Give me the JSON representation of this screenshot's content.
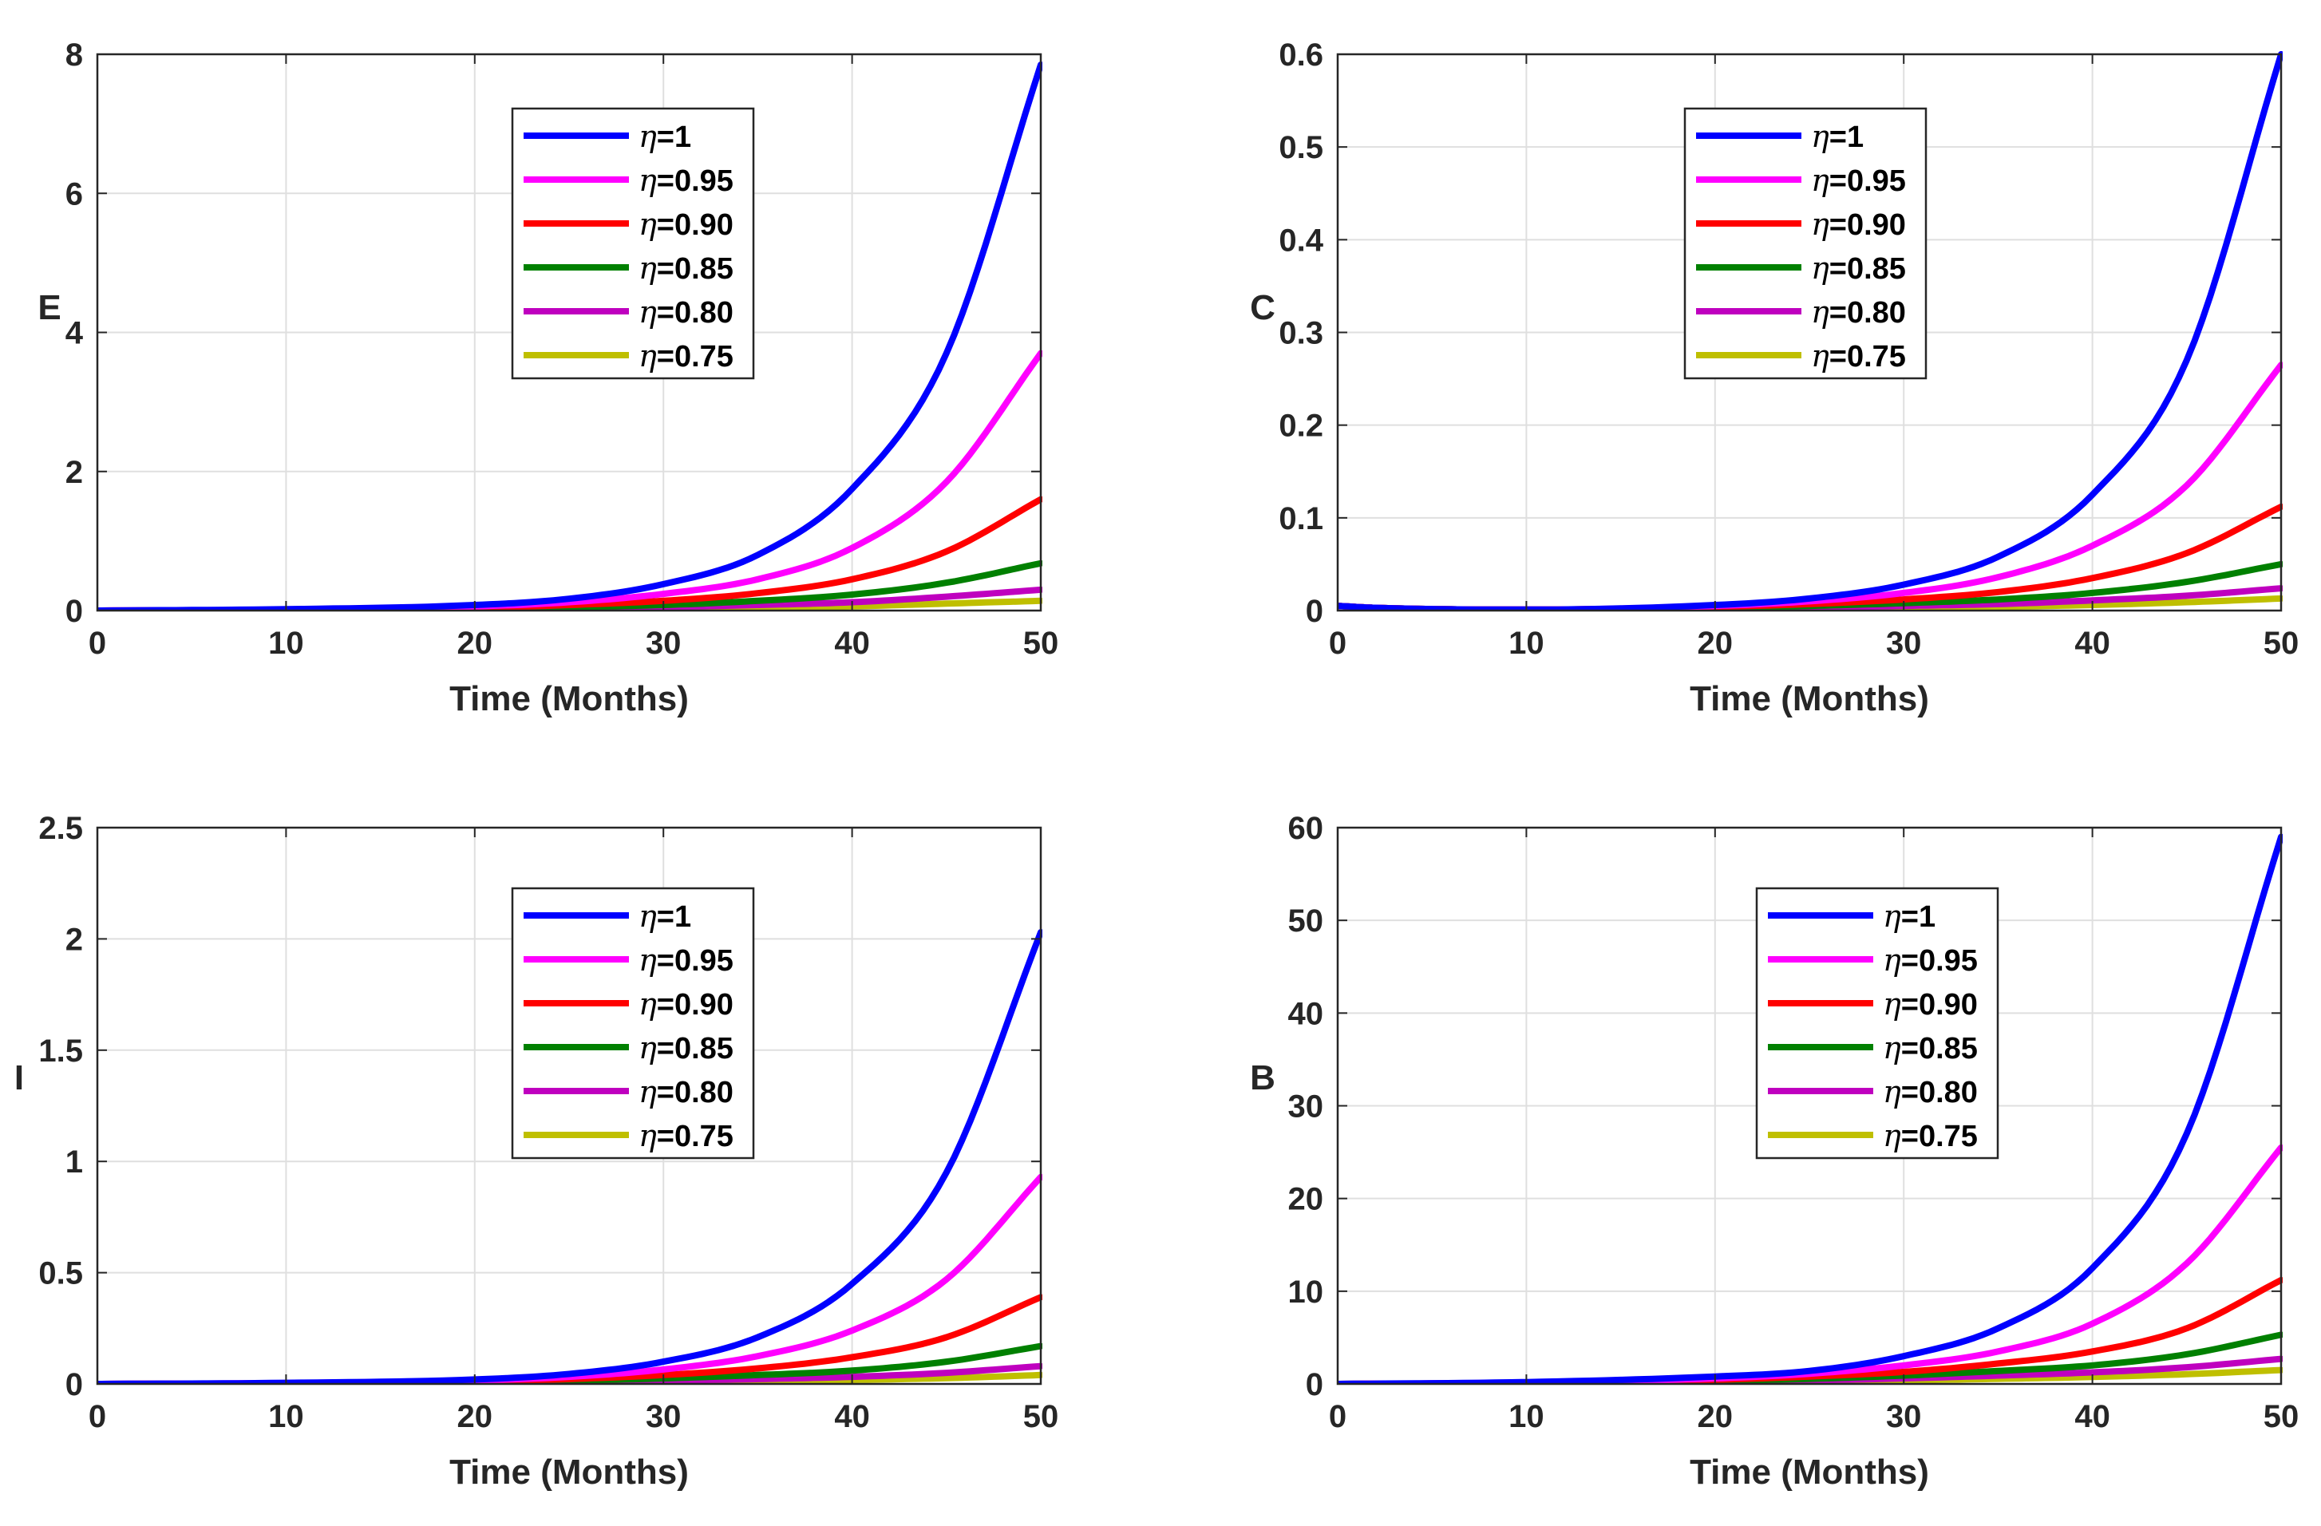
{
  "colors": {
    "eta_1": "#0000ff",
    "eta_095": "#ff00ff",
    "eta_090": "#ff0000",
    "eta_085": "#008000",
    "eta_080": "#bf00bf",
    "eta_075": "#bfbf00"
  },
  "legend_labels": [
    {
      "symbol": "η",
      "text": "=1"
    },
    {
      "symbol": "η",
      "text": "=0.95"
    },
    {
      "symbol": "η",
      "text": "=0.90"
    },
    {
      "symbol": "η",
      "text": "=0.85"
    },
    {
      "symbol": "η",
      "text": "=0.80"
    },
    {
      "symbol": "η",
      "text": "=0.75"
    }
  ],
  "chart_data": [
    {
      "type": "line",
      "title": "",
      "xlabel": "Time (Months)",
      "ylabel": "E",
      "xlim": [
        0,
        50
      ],
      "ylim": [
        0,
        8
      ],
      "xticks": [
        "0",
        "10",
        "20",
        "30",
        "40",
        "50"
      ],
      "yticks": [
        "0",
        "2",
        "4",
        "6",
        "8"
      ],
      "grid": true,
      "legend_position": "top-center",
      "x": [
        0,
        10,
        20,
        25,
        30,
        35,
        40,
        45,
        50
      ],
      "series": [
        {
          "name": "η=1",
          "color": "#0000ff",
          "values": [
            0,
            0.02,
            0.08,
            0.17,
            0.38,
            0.8,
            1.75,
            3.7,
            7.85
          ]
        },
        {
          "name": "η=0.95",
          "color": "#ff00ff",
          "values": [
            0,
            0.01,
            0.06,
            0.12,
            0.24,
            0.45,
            0.9,
            1.85,
            3.7
          ]
        },
        {
          "name": "η=0.90",
          "color": "#ff0000",
          "values": [
            0,
            0.01,
            0.04,
            0.08,
            0.14,
            0.25,
            0.45,
            0.85,
            1.6
          ]
        },
        {
          "name": "η=0.85",
          "color": "#008000",
          "values": [
            0,
            0.0,
            0.03,
            0.05,
            0.08,
            0.14,
            0.23,
            0.4,
            0.68
          ]
        },
        {
          "name": "η=0.80",
          "color": "#bf00bf",
          "values": [
            0,
            0.0,
            0.02,
            0.03,
            0.05,
            0.08,
            0.12,
            0.2,
            0.3
          ]
        },
        {
          "name": "η=0.75",
          "color": "#bfbf00",
          "values": [
            0,
            0.0,
            0.01,
            0.02,
            0.03,
            0.04,
            0.06,
            0.1,
            0.14
          ]
        }
      ]
    },
    {
      "type": "line",
      "title": "",
      "xlabel": "Time (Months)",
      "ylabel": "C",
      "xlim": [
        0,
        50
      ],
      "ylim": [
        0,
        0.6
      ],
      "xticks": [
        "0",
        "10",
        "20",
        "30",
        "40",
        "50"
      ],
      "yticks": [
        "0",
        "0.1",
        "0.2",
        "0.3",
        "0.4",
        "0.5",
        "0.6"
      ],
      "grid": true,
      "legend_position": "top-center",
      "x": [
        0,
        2,
        10,
        20,
        25,
        30,
        35,
        40,
        45,
        50
      ],
      "series": [
        {
          "name": "η=1",
          "color": "#0000ff",
          "values": [
            0.005,
            0.003,
            0.001,
            0.006,
            0.013,
            0.028,
            0.058,
            0.125,
            0.27,
            0.6
          ]
        },
        {
          "name": "η=0.95",
          "color": "#ff00ff",
          "values": [
            0.005,
            0.003,
            0.001,
            0.005,
            0.01,
            0.019,
            0.036,
            0.07,
            0.135,
            0.265
          ]
        },
        {
          "name": "η=0.90",
          "color": "#ff0000",
          "values": [
            0.005,
            0.003,
            0.001,
            0.004,
            0.007,
            0.012,
            0.02,
            0.035,
            0.062,
            0.112
          ]
        },
        {
          "name": "η=0.85",
          "color": "#008000",
          "values": [
            0.005,
            0.003,
            0.001,
            0.003,
            0.005,
            0.008,
            0.012,
            0.019,
            0.031,
            0.05
          ]
        },
        {
          "name": "η=0.80",
          "color": "#bf00bf",
          "values": [
            0.005,
            0.003,
            0.001,
            0.002,
            0.003,
            0.005,
            0.007,
            0.011,
            0.016,
            0.024
          ]
        },
        {
          "name": "η=0.75",
          "color": "#bfbf00",
          "values": [
            0.005,
            0.003,
            0.001,
            0.001,
            0.002,
            0.003,
            0.004,
            0.006,
            0.009,
            0.013
          ]
        }
      ]
    },
    {
      "type": "line",
      "title": "",
      "xlabel": "Time (Months)",
      "ylabel": "I",
      "xlim": [
        0,
        50
      ],
      "ylim": [
        0,
        2.5
      ],
      "xticks": [
        "0",
        "10",
        "20",
        "30",
        "40",
        "50"
      ],
      "yticks": [
        "0",
        "0.5",
        "1",
        "1.5",
        "2",
        "2.5"
      ],
      "grid": true,
      "legend_position": "top-center",
      "x": [
        0,
        10,
        20,
        25,
        30,
        35,
        40,
        45,
        50
      ],
      "series": [
        {
          "name": "η=1",
          "color": "#0000ff",
          "values": [
            0,
            0.005,
            0.02,
            0.045,
            0.1,
            0.21,
            0.45,
            0.95,
            2.03
          ]
        },
        {
          "name": "η=0.95",
          "color": "#ff00ff",
          "values": [
            0,
            0.004,
            0.016,
            0.032,
            0.065,
            0.125,
            0.24,
            0.47,
            0.93
          ]
        },
        {
          "name": "η=0.90",
          "color": "#ff0000",
          "values": [
            0,
            0.003,
            0.012,
            0.022,
            0.04,
            0.07,
            0.12,
            0.21,
            0.39
          ]
        },
        {
          "name": "η=0.85",
          "color": "#008000",
          "values": [
            0,
            0.002,
            0.009,
            0.015,
            0.025,
            0.04,
            0.06,
            0.1,
            0.17
          ]
        },
        {
          "name": "η=0.80",
          "color": "#bf00bf",
          "values": [
            0,
            0.001,
            0.006,
            0.01,
            0.015,
            0.022,
            0.032,
            0.05,
            0.08
          ]
        },
        {
          "name": "η=0.75",
          "color": "#bfbf00",
          "values": [
            0,
            0.001,
            0.004,
            0.007,
            0.01,
            0.013,
            0.018,
            0.026,
            0.04
          ]
        }
      ]
    },
    {
      "type": "line",
      "title": "",
      "xlabel": "Time (Months)",
      "ylabel": "B",
      "xlim": [
        0,
        50
      ],
      "ylim": [
        0,
        60
      ],
      "xticks": [
        "0",
        "10",
        "20",
        "30",
        "40",
        "50"
      ],
      "yticks": [
        "0",
        "10",
        "20",
        "30",
        "40",
        "50",
        "60"
      ],
      "grid": true,
      "legend_position": "top-center",
      "x": [
        0,
        10,
        20,
        25,
        30,
        35,
        40,
        45,
        50
      ],
      "series": [
        {
          "name": "η=1",
          "color": "#0000ff",
          "values": [
            0,
            0.2,
            0.8,
            1.4,
            3,
            6,
            12.5,
            27,
            59
          ]
        },
        {
          "name": "η=0.95",
          "color": "#ff00ff",
          "values": [
            0,
            0.15,
            0.6,
            1.1,
            2,
            3.5,
            6.5,
            13,
            25.5
          ]
        },
        {
          "name": "η=0.90",
          "color": "#ff0000",
          "values": [
            0,
            0.1,
            0.45,
            0.8,
            1.3,
            2.2,
            3.5,
            6,
            11.2
          ]
        },
        {
          "name": "η=0.85",
          "color": "#008000",
          "values": [
            0,
            0.07,
            0.33,
            0.55,
            0.9,
            1.4,
            2,
            3.2,
            5.3
          ]
        },
        {
          "name": "η=0.80",
          "color": "#bf00bf",
          "values": [
            0,
            0.05,
            0.22,
            0.38,
            0.6,
            0.9,
            1.25,
            1.8,
            2.7
          ]
        },
        {
          "name": "η=0.75",
          "color": "#bfbf00",
          "values": [
            0,
            0.03,
            0.15,
            0.25,
            0.38,
            0.55,
            0.75,
            1.05,
            1.5
          ]
        }
      ]
    }
  ]
}
